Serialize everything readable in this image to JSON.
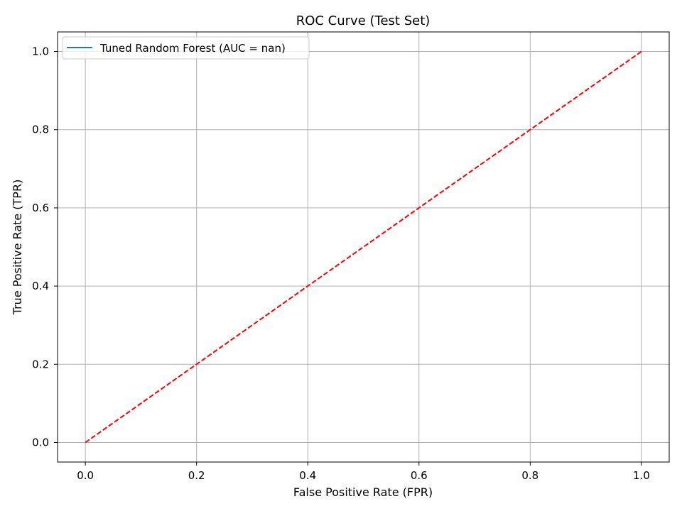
{
  "chart_data": {
    "type": "line",
    "title": "ROC Curve (Test Set)",
    "xlabel": "False Positive Rate (FPR)",
    "ylabel": "True Positive Rate (TPR)",
    "xlim": [
      -0.05,
      1.05
    ],
    "ylim": [
      -0.05,
      1.05
    ],
    "xticks": [
      "0.0",
      "0.2",
      "0.4",
      "0.6",
      "0.8",
      "1.0"
    ],
    "yticks": [
      "0.0",
      "0.2",
      "0.4",
      "0.6",
      "0.8",
      "1.0"
    ],
    "grid": true,
    "legend_position": "top-left",
    "series": [
      {
        "name": "Tuned Random Forest (AUC = nan)",
        "color": "#1f77b4",
        "style": "solid",
        "x": [],
        "y": []
      },
      {
        "color": "#ff0000",
        "style": "dashed",
        "x": [
          0,
          1
        ],
        "y": [
          0,
          1
        ]
      }
    ]
  }
}
